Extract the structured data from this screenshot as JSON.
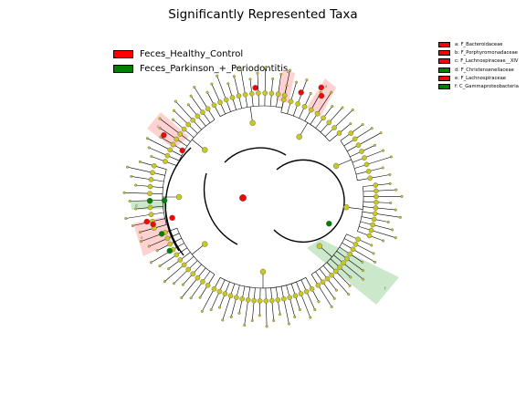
{
  "figure": {
    "title": "Significantly Represented Taxa"
  },
  "legend": {
    "items": [
      {
        "label": "Feces_Healthy_Control",
        "color": "#ff0000"
      },
      {
        "label": "Feces_Parkinson_+_Periodontitis",
        "color": "#008000"
      }
    ]
  },
  "clade_legend": {
    "items": [
      {
        "label": "a: F_Bacteroidaceae",
        "color": "#ff0000"
      },
      {
        "label": "b: F_Porphyromonadaceae",
        "color": "#ff0000"
      },
      {
        "label": "c: F_Lachnospiraceae__XIV",
        "color": "#ff0000"
      },
      {
        "label": "d: F_Christensenellaceae",
        "color": "#008000"
      },
      {
        "label": "e: F_Lachnospiraceae",
        "color": "#ff0000"
      },
      {
        "label": "f: C_Gammaproteobacteria",
        "color": "#008000"
      }
    ]
  },
  "colors": {
    "healthy_control": "#ff0000",
    "parkinson_periodontitis": "#008000",
    "nonsignificant": "#c8c81e",
    "healthy_shade": "#ffb3b3",
    "parkinson_shade": "#a8d8a8"
  }
}
